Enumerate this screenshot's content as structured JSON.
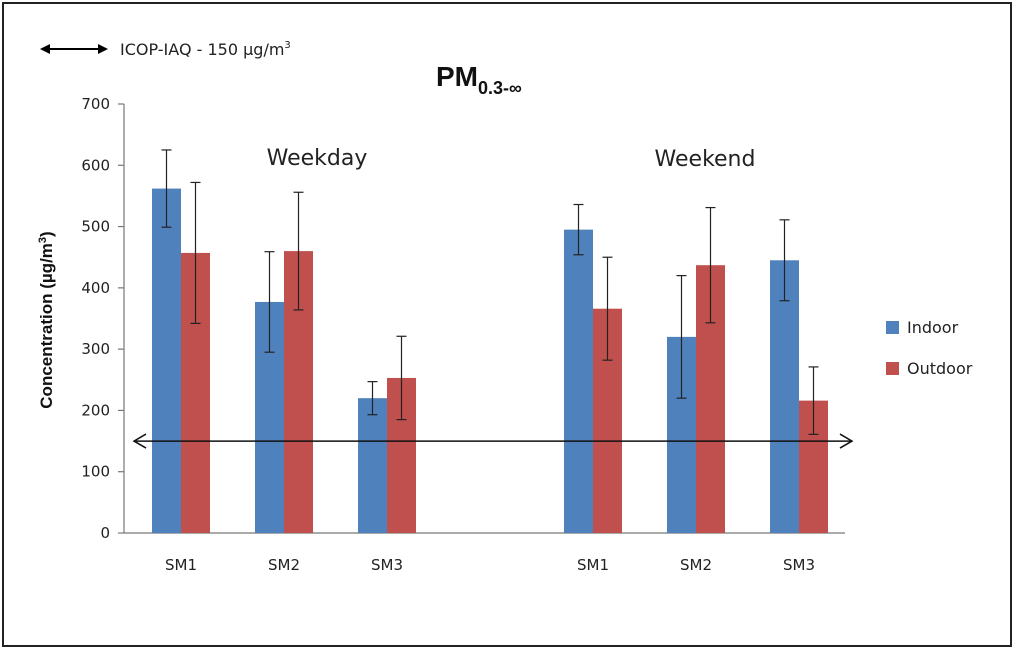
{
  "chart_data": {
    "type": "bar",
    "title": "PM",
    "title_subscript": "0.3-∞",
    "ylabel": "Concentration (µg/m",
    "ylabel_superscript": "3",
    "ylabel_suffix": ")",
    "ylim": [
      0,
      700
    ],
    "yticks": [
      "0",
      "100",
      "200",
      "300",
      "400",
      "500",
      "600",
      "700"
    ],
    "groups": [
      {
        "label": "Weekday",
        "categories": [
          "SM1",
          "SM2",
          "SM3"
        ]
      },
      {
        "label": "Weekend",
        "categories": [
          "SM1",
          "SM2",
          "SM3"
        ]
      }
    ],
    "series": [
      {
        "name": "Indoor",
        "color": "#4f81bd",
        "values": [
          562,
          377,
          220,
          495,
          320,
          445
        ],
        "errors": [
          63,
          82,
          27,
          41,
          100,
          66
        ]
      },
      {
        "name": "Outdoor",
        "color": "#c0504d",
        "values": [
          457,
          460,
          253,
          366,
          437,
          216
        ],
        "errors": [
          115,
          96,
          68,
          84,
          94,
          55
        ]
      }
    ],
    "reference": {
      "value": 150,
      "text": "ICOP-IAQ - 150 µg/m",
      "text_superscript": "3"
    },
    "legend_position": "right",
    "grid": false
  }
}
